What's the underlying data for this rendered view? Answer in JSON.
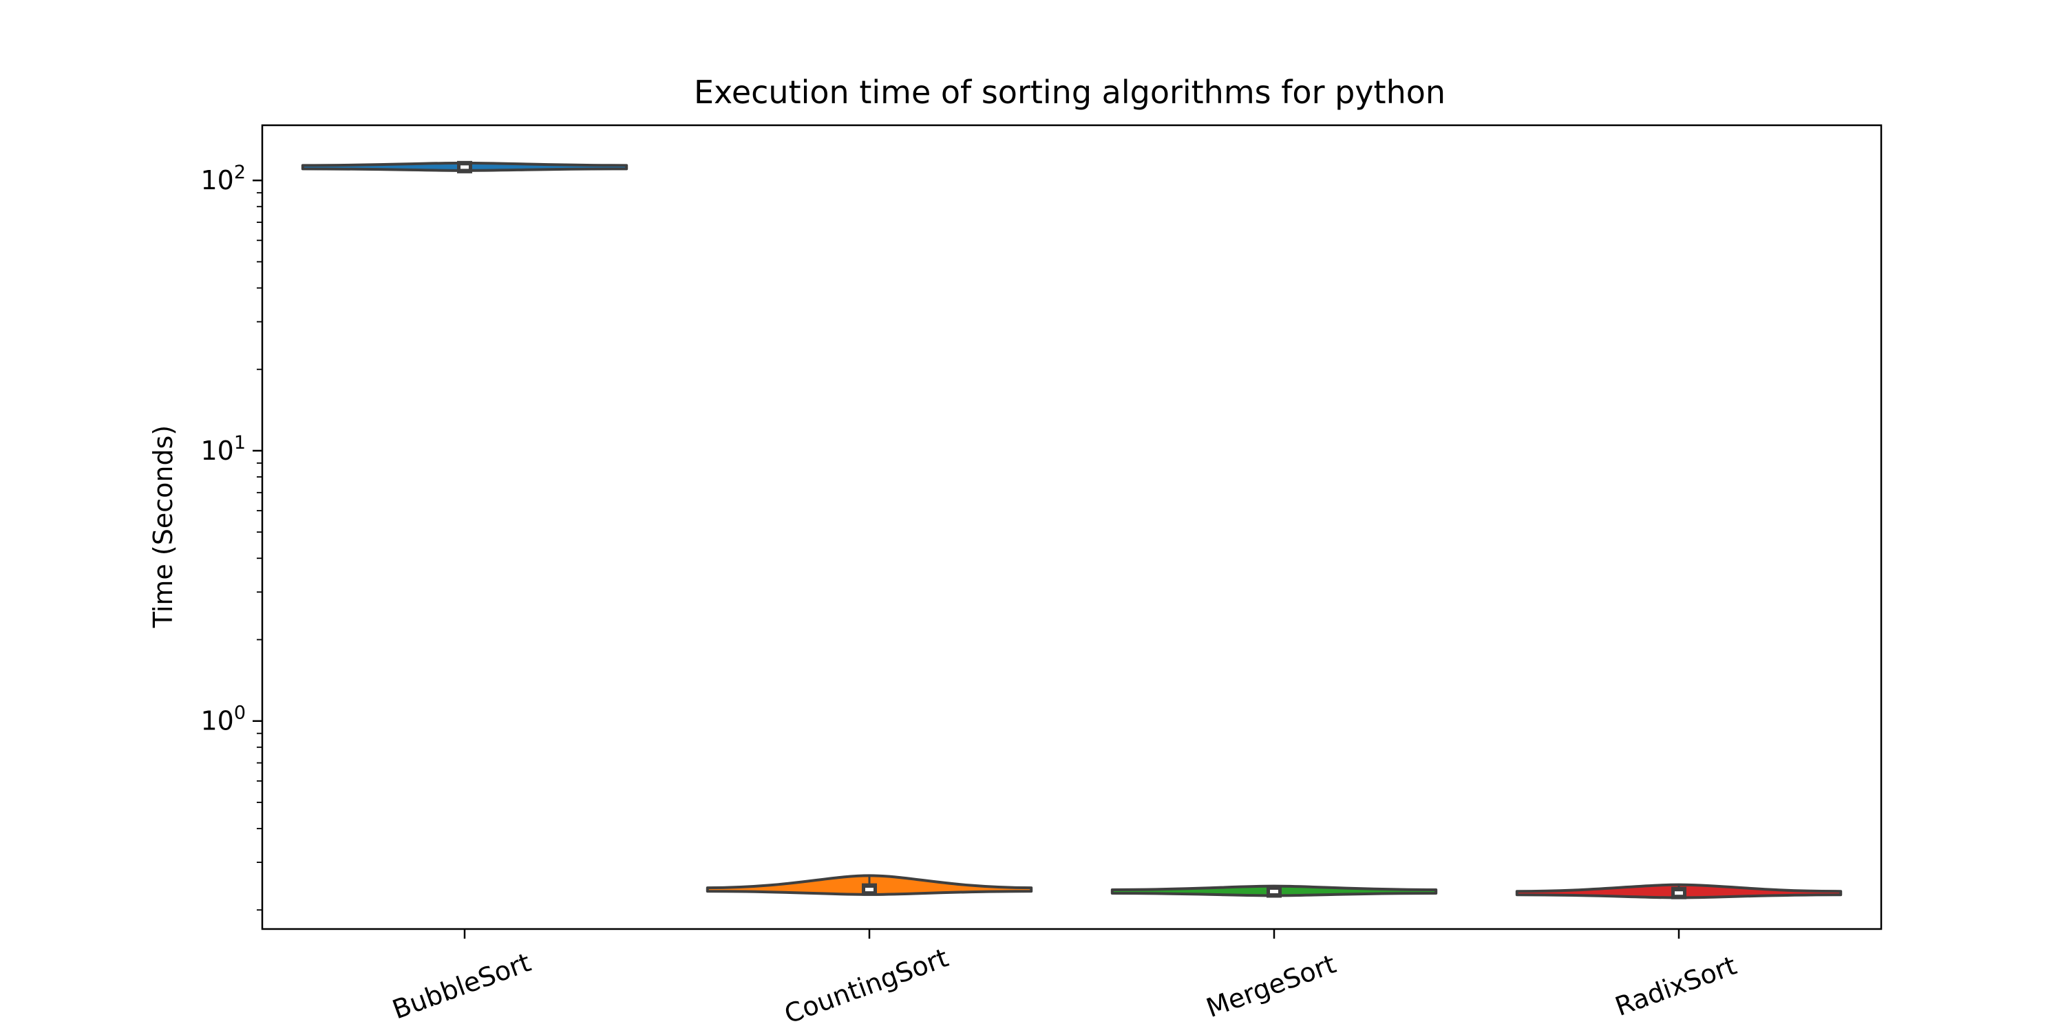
{
  "chart_data": {
    "type": "violin",
    "title": "Execution time of sorting algorithms for python",
    "xlabel": "",
    "ylabel": "Time (Seconds)",
    "yscale": "log",
    "ylim": [
      0.17,
      160
    ],
    "yticks": [
      {
        "value": 1,
        "base": "10",
        "exp": "0"
      },
      {
        "value": 10,
        "base": "10",
        "exp": "1"
      },
      {
        "value": 100,
        "base": "10",
        "exp": "2"
      }
    ],
    "grid": false,
    "legend": "none",
    "categories": [
      "BubbleSort",
      "CountingSort",
      "MergeSort",
      "RadixSort"
    ],
    "series": [
      {
        "category": "BubbleSort",
        "color": "#1f77b4",
        "min": 109.5,
        "q1": 110.5,
        "median": 112,
        "q3": 113.5,
        "max": 116
      },
      {
        "category": "CountingSort",
        "color": "#ff7f0e",
        "min": 0.228,
        "q1": 0.232,
        "median": 0.238,
        "q3": 0.248,
        "max": 0.268
      },
      {
        "category": "MergeSort",
        "color": "#2ca02c",
        "min": 0.226,
        "q1": 0.229,
        "median": 0.234,
        "q3": 0.241,
        "max": 0.245
      },
      {
        "category": "RadixSort",
        "color": "#d62728",
        "min": 0.222,
        "q1": 0.226,
        "median": 0.231,
        "q3": 0.239,
        "max": 0.248
      }
    ]
  }
}
